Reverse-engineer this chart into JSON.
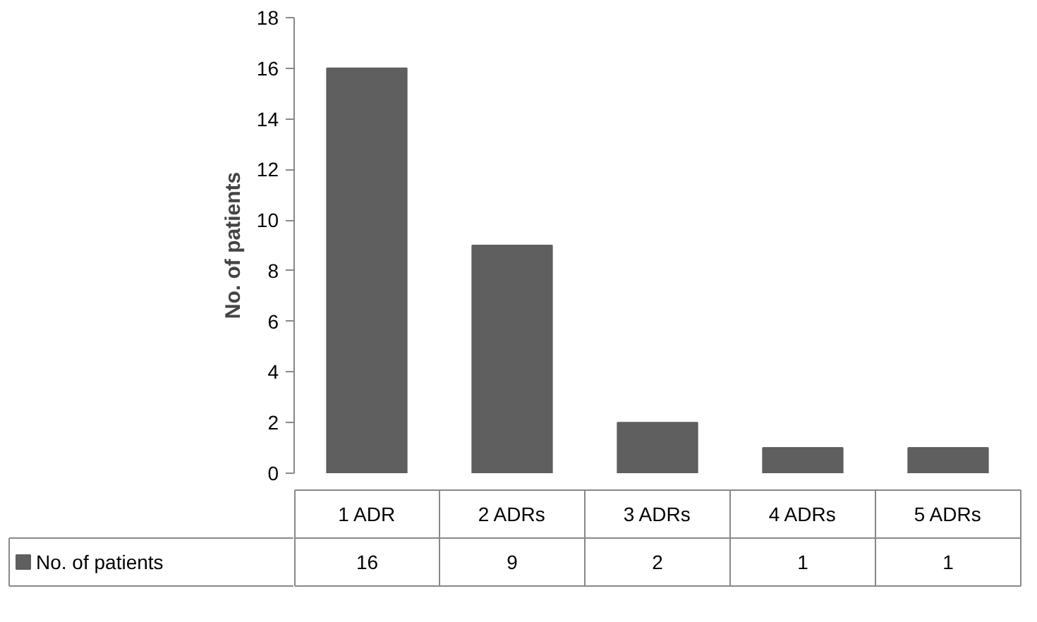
{
  "chart_data": {
    "type": "bar",
    "ylabel": "No. of patients",
    "categories": [
      "1 ADR",
      "2 ADRs",
      "3 ADRs",
      "4 ADRs",
      "5 ADRs"
    ],
    "series": [
      {
        "name": "No. of patients",
        "color": "#5f5f5f",
        "values": [
          16,
          9,
          2,
          1,
          1
        ]
      }
    ],
    "ylim": [
      0,
      18
    ],
    "yticks": [
      0,
      2,
      4,
      6,
      8,
      10,
      12,
      14,
      16,
      18
    ],
    "data_labels": true,
    "legend": "bottom",
    "grid": false
  }
}
